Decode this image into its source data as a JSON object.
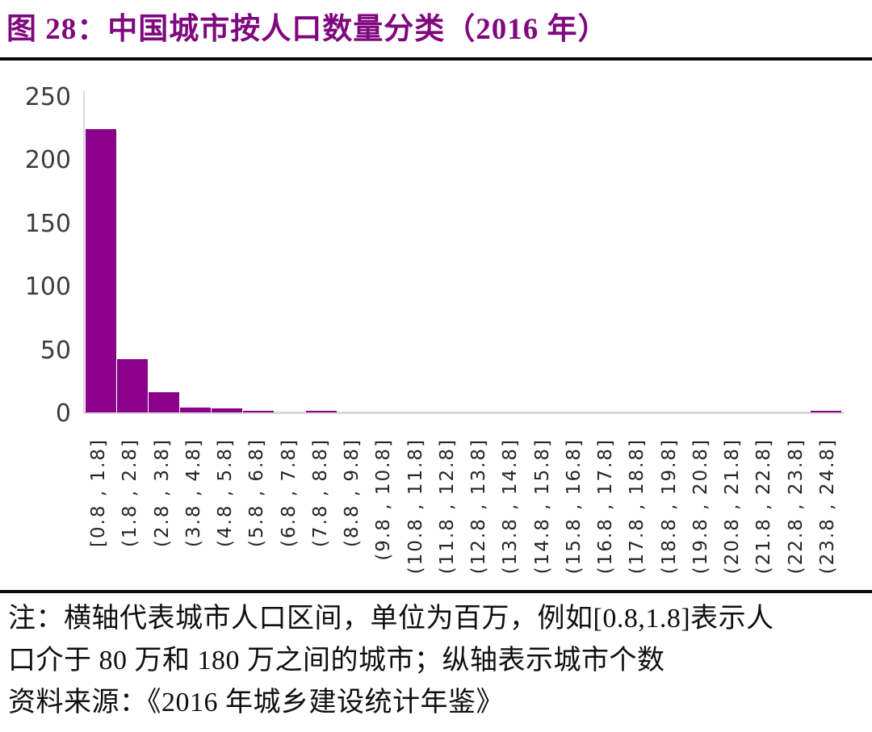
{
  "figure": {
    "title": "图 28：中国城市按人口数量分类（2016 年）",
    "note_line1": "注：横轴代表城市人口区间，单位为百万，例如[0.8,1.8]表示人",
    "note_line2": "口介于 80 万和 180 万之间的城市；纵轴表示城市个数",
    "source": "资料来源：《2016 年城乡建设统计年鉴》"
  },
  "colors": {
    "title_text": "#80087F",
    "bar_fill": "#8B008B",
    "axis_line": "#d9d9d9",
    "tick_text": "#3d3d3d",
    "rule": "#0a0a0a"
  },
  "chart_data": {
    "type": "bar",
    "title": "中国城市按人口数量分类（2016 年）",
    "categories": [
      "[0.8 , 1.8]",
      "(1.8 , 2.8]",
      "(2.8 , 3.8]",
      "(3.8 , 4.8]",
      "(4.8 , 5.8]",
      "(5.8 , 6.8]",
      "(6.8 , 7.8]",
      "(7.8 , 8.8]",
      "(8.8 , 9.8]",
      "(9.8 , 10.8]",
      "(10.8 , 11.8]",
      "(11.8 , 12.8]",
      "(12.8 , 13.8]",
      "(13.8 , 14.8]",
      "(14.8 , 15.8]",
      "(15.8 , 16.8]",
      "(16.8 , 17.8]",
      "(17.8 , 18.8]",
      "(18.8 , 19.8]",
      "(19.8 , 20.8]",
      "(20.8 , 21.8]",
      "(21.8 , 22.8]",
      "(22.8 , 23.8]",
      "(23.8 , 24.8]"
    ],
    "values": [
      224,
      42,
      16,
      4,
      3,
      1,
      0,
      1,
      0,
      0,
      0,
      0,
      0,
      0,
      0,
      0,
      0,
      0,
      0,
      0,
      0,
      0,
      0,
      1
    ],
    "xlabel": "",
    "ylabel": "",
    "ylim": [
      0,
      250
    ],
    "yticks": [
      0,
      50,
      100,
      150,
      200,
      250
    ],
    "grid": false,
    "legend": false,
    "bar_color": "#8B008B"
  }
}
